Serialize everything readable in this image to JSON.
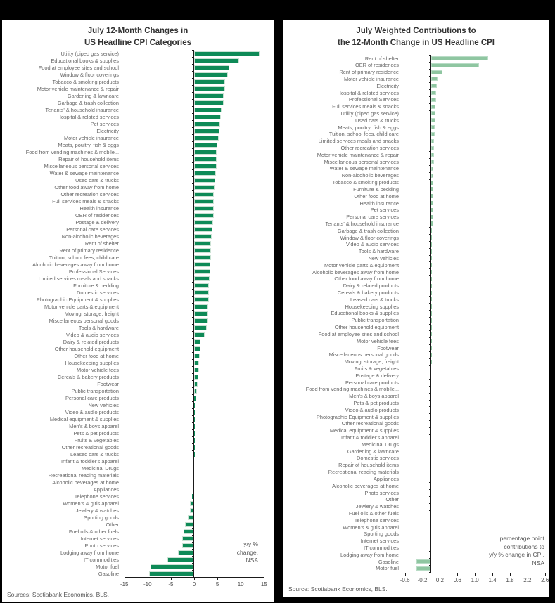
{
  "page_background": "#000000",
  "chart_data": [
    {
      "type": "bar",
      "orientation": "horizontal",
      "title": "July 12-Month Changes in US Headline CPI Categories",
      "title_lines": [
        "July 12-Month Changes in",
        "US Headline CPI Categories"
      ],
      "xlabel": "",
      "ylabel": "",
      "xlim": [
        -15,
        15
      ],
      "x_ticks": [
        -15,
        -10,
        -5,
        0,
        5,
        10,
        15
      ],
      "x_tick_labels": [
        "-15",
        "-10",
        "-5",
        "0",
        "5",
        "10",
        "15"
      ],
      "grid": false,
      "legend": "none",
      "bar_color": "#0E8A57",
      "bar_edge_color": "#CBE2D4",
      "annotation": "y/y % change, NSA",
      "note_lines": [
        "y/y %",
        "change,",
        "NSA"
      ],
      "source": "Sources: Scotiabank Economics, BLS.",
      "categories": [
        "Utility (piped gas service)",
        "Educational books & supplies",
        "Food at employee sites and school",
        "Window & floor coverings",
        "Tobacco & smoking products",
        "Motor vehicle maintenance & repair",
        "Gardening & lawncare",
        "Garbage & trash collection",
        "Tenants' & household insurance",
        "Hospital & related services",
        "Pet services",
        "Electricity",
        "Motor vehicle insurance",
        "Meats, poultry, fish & eggs",
        "Food from vending machines & mobile...",
        "Repair of household items",
        "Miscellaneous personal services",
        "Water & sewage maintenance",
        "Used cars & trucks",
        "Other food away from home",
        "Other recreation services",
        "Full services meals & snacks",
        "Health insurance",
        "OER of residences",
        "Postage & delivery",
        "Personal care services",
        "Non-alcoholic beverages",
        "Rent of shelter",
        "Rent of primary residence",
        "Tuition, school fees, child care",
        "Alcoholic beverages away from home",
        "Professional Services",
        "Limited services meals and snacks",
        "Furniture & bedding",
        "Domestic services",
        "Photographic Equipment & supplies",
        "Motor vehicle parts & equipment",
        "Moving, storage, freight",
        "Miscellaneous personal goods",
        "Tools & hardware",
        "Video & audio services",
        "Dairy & related products",
        "Other household equipment",
        "Other food at home",
        "Housekeeping supplies",
        "Motor vehicle fees",
        "Cereals & bakery products",
        "Footwear",
        "Public transportation",
        "Personal care products",
        "New vehicles",
        "Video & audio products",
        "Medical equipment & supplies",
        "Men's & boys apparel",
        "Pets & pet products",
        "Fruits & vegetables",
        "Other recreational goods",
        "Leased cars & trucks",
        "Infant & toddler's apparel",
        "Medicinal Drugs",
        "Recreational reading materials",
        "Alcoholic beverages at home",
        "Appliances",
        "Telephone services",
        "Women's & girls apparel",
        "Jewlery & watches",
        "Sporting goods",
        "Other",
        "Fuel oils & other fuels",
        "Internet services",
        "Photo services",
        "Lodging away from home",
        "IT commodities",
        "Motor fuel",
        "Gasoline"
      ],
      "values": [
        14.0,
        9.6,
        7.5,
        7.2,
        6.7,
        6.6,
        6.4,
        6.3,
        5.9,
        5.7,
        5.6,
        5.5,
        5.3,
        5.0,
        4.9,
        4.8,
        4.8,
        4.7,
        4.6,
        4.4,
        4.3,
        4.3,
        4.3,
        4.2,
        4.1,
        3.9,
        3.8,
        3.7,
        3.7,
        3.7,
        3.5,
        3.4,
        3.3,
        3.2,
        3.1,
        3.1,
        2.9,
        2.8,
        2.8,
        2.7,
        2.3,
        1.4,
        1.4,
        1.2,
        1.0,
        1.0,
        0.9,
        0.8,
        0.6,
        0.3,
        0.2,
        0.2,
        0.2,
        0.1,
        0.1,
        0.1,
        0.1,
        0.1,
        -0.1,
        -0.1,
        -0.1,
        -0.1,
        -0.2,
        -0.4,
        -0.9,
        -0.9,
        -1.4,
        -2.0,
        -2.2,
        -2.5,
        -2.5,
        -3.4,
        -5.8,
        -9.4,
        -9.7
      ]
    },
    {
      "type": "bar",
      "orientation": "horizontal",
      "title": "July Weighted Contributions to the 12-Month Change in US Headline CPI",
      "title_lines": [
        "July Weighted Contributions to",
        "the 12-Month Change in US Headline CPI"
      ],
      "xlabel": "",
      "ylabel": "",
      "xlim": [
        -0.6,
        2.6
      ],
      "x_ticks": [
        -0.6,
        -0.2,
        0.2,
        0.6,
        1.0,
        1.4,
        1.8,
        2.2,
        2.6
      ],
      "x_tick_labels": [
        "-0.6",
        "-0.2",
        "0.2",
        "0.6",
        "1.0",
        "1.4",
        "1.8",
        "2.2",
        "2.6"
      ],
      "grid": false,
      "legend": "none",
      "bar_color": "#8FC6A1",
      "bar_edge_color": "#B9DCC6",
      "annotation": "percentage point contributions to y/y % change in CPI, NSA",
      "note_lines": [
        "percentage point",
        "contributions to",
        "y/y % change in CPI,",
        "NSA"
      ],
      "source": "Source: Scotiabank Economics, BLS.",
      "categories": [
        "Rent of shelter",
        "OER of residences",
        "Rent of primary residence",
        "Motor vehicle insurance",
        "Electricity",
        "Hospital & related services",
        "Professional Services",
        "Full services meals & snacks",
        "Utility (piped gas service)",
        "Used cars & trucks",
        "Meats, poultry, fish & eggs",
        "Tuition, school fees, child care",
        "Limited services meals and snacks",
        "Other recreation services",
        "Motor vehicle maintenance & repair",
        "Miscellaneous personal services",
        "Water & sewage maintenance",
        "Non-alcoholic beverages",
        "Tobacco & smoking products",
        "Furniture & bedding",
        "Other food at home",
        "Health insurance",
        "Pet services",
        "Personal care services",
        "Tenants' & household insurance",
        "Garbage & trash collection",
        "Window & floor coverings",
        "Video & audio services",
        "Tools & hardware",
        "New vehicles",
        "Motor vehicle parts & equipment",
        "Alcoholic beverages away from home",
        "Other food away from home",
        "Dairy & related products",
        "Cereals & bakery products",
        "Leased cars & trucks",
        "Housekeeping supplies",
        "Educational books & supplies",
        "Public transportation",
        "Other household equipment",
        "Food at employee sites and school",
        "Motor vehicle fees",
        "Footwear",
        "Miscellaneous personal goods",
        "Moving, storage, freight",
        "Fruits & vegetables",
        "Postage & delivery",
        "Personal care products",
        "Food from vending machines & mobile...",
        "Men's & boys apparel",
        "Pets & pet products",
        "Video & audio products",
        "Photographic Equipment & supplies",
        "Other recreational goods",
        "Medical equipment & supplies",
        "Infant & toddler's apparel",
        "Medicinal Drugs",
        "Gardening & lawncare",
        "Domestic services",
        "Repair of household items",
        "Recreational reading materials",
        "Appliances",
        "Alcoholic beverages at home",
        "Photo services",
        "Other",
        "Jewlery & watches",
        "Fuel oils & other fuels",
        "Telephone services",
        "Women's & girls apparel",
        "Sporting goods",
        "Internet services",
        "IT commodities",
        "Lodging away from home",
        "Gasoline",
        "Motor fuel"
      ],
      "values": [
        1.3,
        1.1,
        0.26,
        0.15,
        0.13,
        0.12,
        0.11,
        0.1,
        0.1,
        0.09,
        0.08,
        0.08,
        0.07,
        0.07,
        0.06,
        0.06,
        0.05,
        0.05,
        0.04,
        0.04,
        0.04,
        0.03,
        0.03,
        0.03,
        0.03,
        0.02,
        0.02,
        0.02,
        0.02,
        0.02,
        0.02,
        0.02,
        0.02,
        0.01,
        0.01,
        0.01,
        0.01,
        0.01,
        0.01,
        0.01,
        0.01,
        0.01,
        0.01,
        0.01,
        0.01,
        0.0,
        0.0,
        0.0,
        0.0,
        0.0,
        0.0,
        0.0,
        0.0,
        0.0,
        0.0,
        0.0,
        0.0,
        0.0,
        0.0,
        0.0,
        0.0,
        0.0,
        0.0,
        0.0,
        0.0,
        0.0,
        -0.01,
        -0.01,
        -0.01,
        -0.01,
        -0.02,
        -0.03,
        -0.04,
        -0.33,
        -0.34
      ]
    }
  ]
}
